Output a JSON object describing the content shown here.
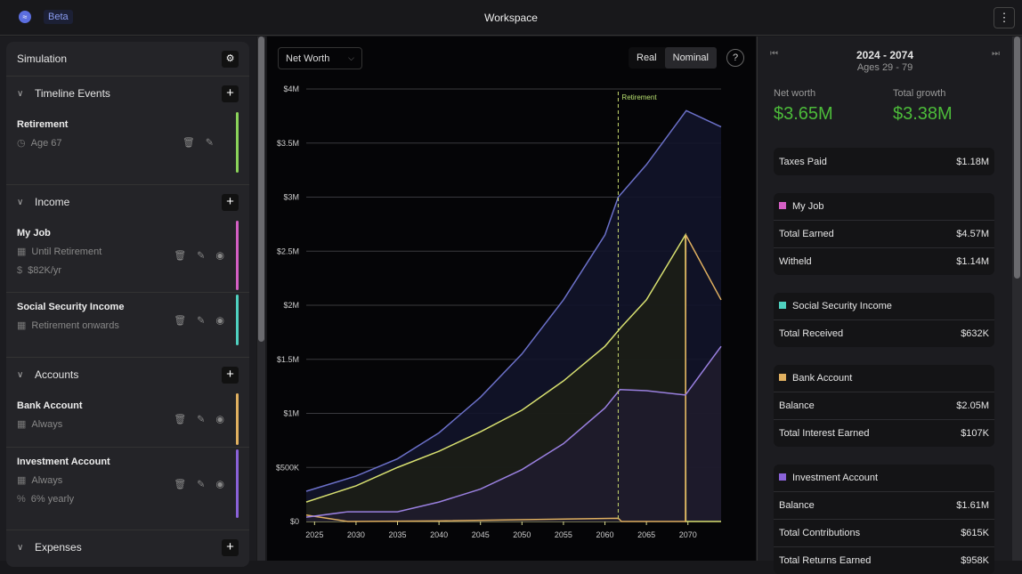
{
  "header": {
    "beta": "Beta",
    "title": "Workspace",
    "menu": "⋮"
  },
  "sidebar": {
    "title": "Simulation",
    "sections": [
      {
        "label": "Timeline Events",
        "items": [
          {
            "name": "Retirement",
            "lines": [
              {
                "icon": "clock-icon",
                "glyph": "◷",
                "text": "Age 67"
              }
            ],
            "color": "#8bd35a",
            "eye": false
          }
        ]
      },
      {
        "label": "Income",
        "items": [
          {
            "name": "My Job",
            "lines": [
              {
                "icon": "calendar-icon",
                "glyph": "▦",
                "text": "Until Retirement"
              },
              {
                "icon": "dollar-icon",
                "glyph": "$",
                "text": "$82K/yr"
              }
            ],
            "color": "#d45fc4",
            "eye": true
          },
          {
            "name": "Social Security Income",
            "lines": [
              {
                "icon": "calendar-icon",
                "glyph": "▦",
                "text": "Retirement onwards"
              }
            ],
            "color": "#4fd1c0",
            "eye": true
          }
        ]
      },
      {
        "label": "Accounts",
        "items": [
          {
            "name": "Bank Account",
            "lines": [
              {
                "icon": "calendar-icon",
                "glyph": "▦",
                "text": "Always"
              }
            ],
            "color": "#e0b060",
            "eye": true
          },
          {
            "name": "Investment Account",
            "lines": [
              {
                "icon": "calendar-icon",
                "glyph": "▦",
                "text": "Always"
              },
              {
                "icon": "percent-icon",
                "glyph": "%",
                "text": "6% yearly"
              }
            ],
            "color": "#8a62d8",
            "eye": true
          }
        ]
      },
      {
        "label": "Expenses",
        "items": []
      }
    ]
  },
  "toolbar": {
    "metric": "Net Worth",
    "real": "Real",
    "nominal": "Nominal",
    "help": "?"
  },
  "chart_data": {
    "type": "area",
    "ylim": [
      0,
      4000000
    ],
    "xlim": [
      2024,
      2074
    ],
    "yticks": [
      {
        "v": 0,
        "label": "$0"
      },
      {
        "v": 500000,
        "label": "$500K"
      },
      {
        "v": 1000000,
        "label": "$1M"
      },
      {
        "v": 1500000,
        "label": "$1.5M"
      },
      {
        "v": 2000000,
        "label": "$2M"
      },
      {
        "v": 2500000,
        "label": "$2.5M"
      },
      {
        "v": 3000000,
        "label": "$3M"
      },
      {
        "v": 3500000,
        "label": "$3.5M"
      },
      {
        "v": 4000000,
        "label": "$4M"
      }
    ],
    "xticks": [
      2025,
      2030,
      2035,
      2040,
      2045,
      2050,
      2055,
      2060,
      2065,
      2070
    ],
    "annotation": {
      "label": "Retirement",
      "x": 2061.6
    },
    "series": [
      {
        "color": "#6b70c8",
        "fill": "#12142a",
        "points": [
          [
            2024,
            280000
          ],
          [
            2030,
            420000
          ],
          [
            2035,
            580000
          ],
          [
            2040,
            820000
          ],
          [
            2045,
            1150000
          ],
          [
            2050,
            1550000
          ],
          [
            2055,
            2050000
          ],
          [
            2060,
            2650000
          ],
          [
            2061.6,
            3000000
          ],
          [
            2065,
            3300000
          ],
          [
            2069.8,
            3800000
          ],
          [
            2074,
            3650000
          ]
        ]
      },
      {
        "color": "#d8e070",
        "fill": "#1c1e16",
        "points": [
          [
            2024,
            180000
          ],
          [
            2030,
            330000
          ],
          [
            2035,
            500000
          ],
          [
            2040,
            650000
          ],
          [
            2045,
            830000
          ],
          [
            2050,
            1030000
          ],
          [
            2055,
            1300000
          ],
          [
            2060,
            1620000
          ],
          [
            2062,
            1800000
          ],
          [
            2065,
            2050000
          ],
          [
            2069.7,
            2650000
          ],
          [
            2069.75,
            0
          ],
          [
            2074,
            0
          ]
        ]
      },
      {
        "color": "#e0b060",
        "fill": "none",
        "points": [
          [
            2024,
            60000
          ],
          [
            2029,
            0
          ],
          [
            2040,
            5000
          ],
          [
            2061.6,
            30000
          ],
          [
            2062,
            0
          ],
          [
            2069.7,
            0
          ],
          [
            2069.75,
            2650000
          ],
          [
            2074,
            2050000
          ]
        ]
      },
      {
        "color": "#9a80e0",
        "fill": "#1f1c2c",
        "points": [
          [
            2024,
            40000
          ],
          [
            2029,
            90000
          ],
          [
            2035,
            90000
          ],
          [
            2040,
            180000
          ],
          [
            2045,
            300000
          ],
          [
            2050,
            480000
          ],
          [
            2055,
            720000
          ],
          [
            2060,
            1050000
          ],
          [
            2061.8,
            1220000
          ],
          [
            2065,
            1210000
          ],
          [
            2069.7,
            1170000
          ],
          [
            2074,
            1620000
          ]
        ]
      }
    ]
  },
  "summary": {
    "period": "2024 - 2074",
    "ages": "Ages 29 - 79",
    "net_worth_label": "Net worth",
    "net_worth": "$3.65M",
    "growth_label": "Total growth",
    "growth": "$3.38M",
    "cards": [
      {
        "title": null,
        "color": null,
        "rows": [
          {
            "label": "Taxes Paid",
            "value": "$1.18M"
          }
        ]
      },
      {
        "title": "My Job",
        "color": "#d45fc4",
        "rows": [
          {
            "label": "Total Earned",
            "value": "$4.57M"
          },
          {
            "label": "Witheld",
            "value": "$1.14M"
          }
        ]
      },
      {
        "title": "Social Security Income",
        "color": "#4fd1c0",
        "rows": [
          {
            "label": "Total Received",
            "value": "$632K"
          }
        ]
      },
      {
        "title": "Bank Account",
        "color": "#e0b060",
        "rows": [
          {
            "label": "Balance",
            "value": "$2.05M"
          },
          {
            "label": "Total Interest Earned",
            "value": "$107K"
          }
        ]
      },
      {
        "title": "Investment Account",
        "color": "#8a62d8",
        "rows": [
          {
            "label": "Balance",
            "value": "$1.61M"
          },
          {
            "label": "Total Contributions",
            "value": "$615K"
          },
          {
            "label": "Total Returns Earned",
            "value": "$958K"
          }
        ]
      }
    ]
  }
}
